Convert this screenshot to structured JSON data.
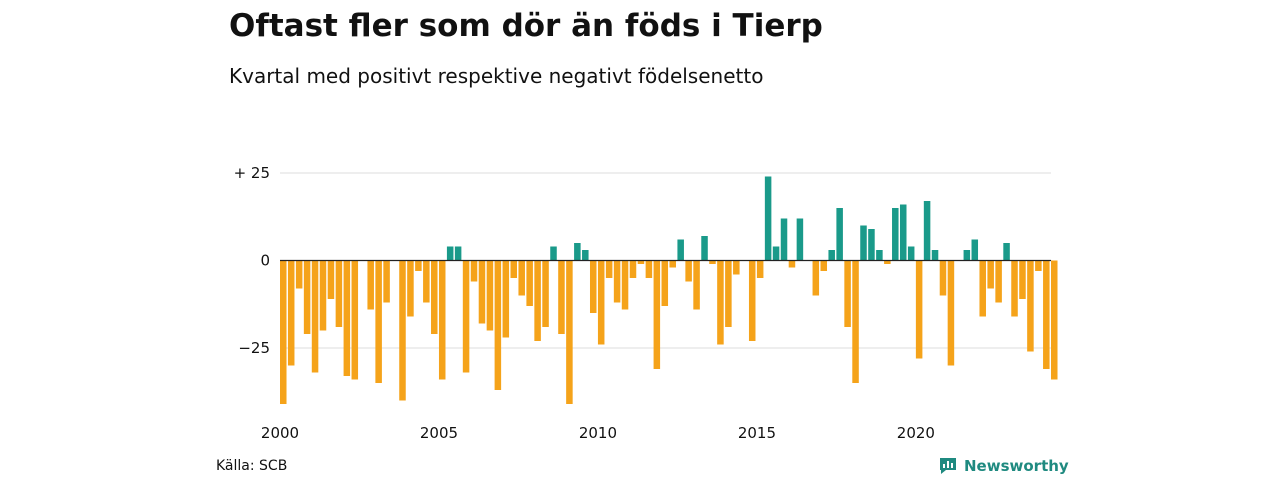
{
  "title": "Oftast fler som dör än föds i Tierp",
  "subtitle": "Kvartal med positivt respektive negativt födelsenetto",
  "source": "Källa: SCB",
  "brand": "Newsworthy",
  "colors": {
    "positive": "#1a9a8a",
    "negative": "#f5a31a",
    "grid": "#dddddd",
    "zero": "#222222",
    "brand": "#1f8a80"
  },
  "chart_data": {
    "type": "bar",
    "title": "Oftast fler som dör än föds i Tierp",
    "subtitle": "Kvartal med positivt respektive negativt födelsenetto",
    "xlabel": "",
    "ylabel": "",
    "ylim": [
      -41,
      25
    ],
    "yticks": [
      25,
      0,
      -25
    ],
    "ytick_labels": [
      "+ 25",
      "0",
      "−25"
    ],
    "xlim": [
      2000,
      2024.25
    ],
    "xticks": [
      2000,
      2005,
      2010,
      2015,
      2020
    ],
    "xtick_labels": [
      "2000",
      "2005",
      "2010",
      "2015",
      "2020"
    ],
    "grid": true,
    "legend": "none",
    "x_start": 2000.0,
    "x_step": 0.25,
    "values": [
      -41,
      -30,
      -8,
      -21,
      -32,
      -20,
      -11,
      -19,
      -33,
      -34,
      0,
      -14,
      -35,
      -12,
      0,
      -40,
      -16,
      -3,
      -12,
      -21,
      -34,
      4,
      4,
      -32,
      -6,
      -18,
      -20,
      -37,
      -22,
      -5,
      -10,
      -13,
      -23,
      -19,
      4,
      -21,
      -41,
      5,
      3,
      -15,
      -24,
      -5,
      -12,
      -14,
      -5,
      -1,
      -5,
      -31,
      -13,
      -2,
      6,
      -6,
      -14,
      7,
      -1,
      -24,
      -19,
      -4,
      0,
      -23,
      -5,
      24,
      4,
      12,
      -2,
      12,
      0,
      -10,
      -3,
      3,
      15,
      -19,
      -35,
      10,
      9,
      3,
      -1,
      15,
      16,
      4,
      -28,
      17,
      3,
      -10,
      -30,
      0,
      3,
      6,
      -16,
      -8,
      -12,
      5,
      -16,
      -11,
      -26,
      -3,
      -31,
      -34
    ]
  }
}
